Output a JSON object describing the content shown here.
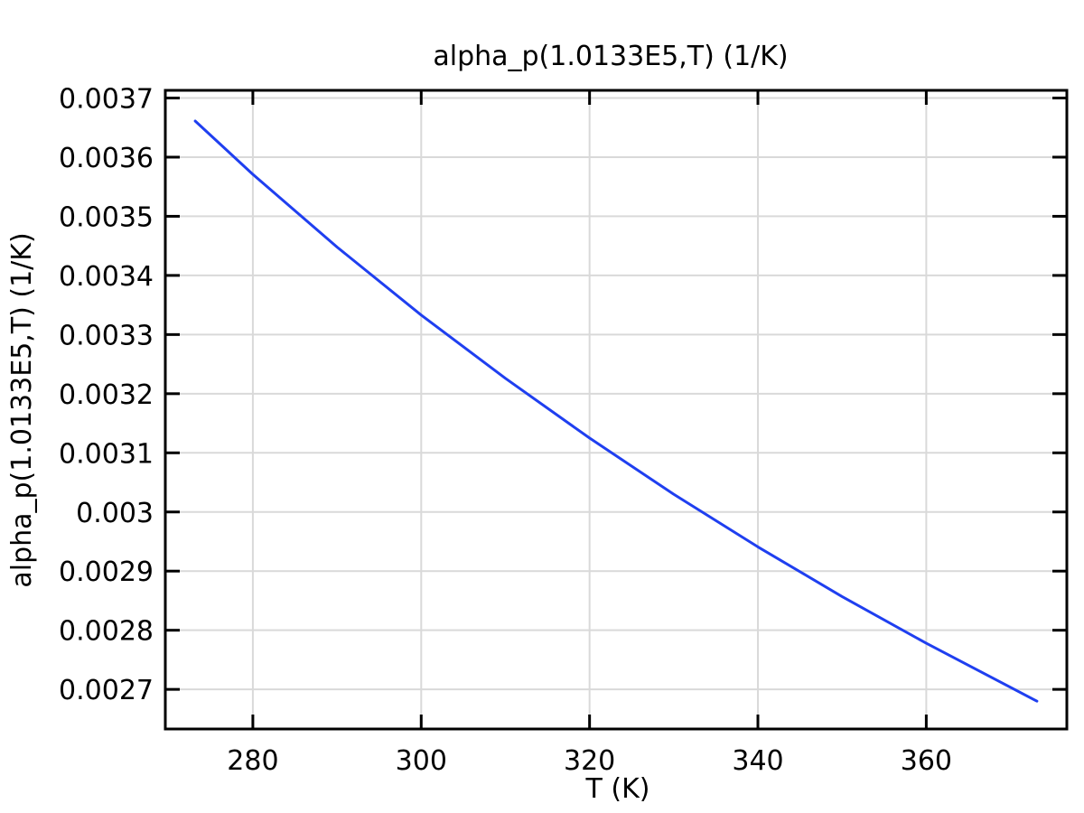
{
  "chart_data": {
    "type": "line",
    "title": "alpha_p(1.0133E5,T) (1/K)",
    "xlabel": "T (K)",
    "ylabel": "alpha_p(1.0133E5,T) (1/K)",
    "xlim": [
      269.6,
      376.7
    ],
    "ylim": [
      0.002633,
      0.003713
    ],
    "x_ticks": [
      280,
      300,
      320,
      340,
      360
    ],
    "x_tick_labels": [
      "280",
      "300",
      "320",
      "340",
      "360"
    ],
    "y_ticks": [
      0.0027,
      0.0028,
      0.0029,
      0.003,
      0.0031,
      0.0032,
      0.0033,
      0.0034,
      0.0035,
      0.0036,
      0.0037
    ],
    "y_tick_labels": [
      "0.0027",
      "0.0028",
      "0.0029",
      "0.003",
      "0.0031",
      "0.0032",
      "0.0033",
      "0.0034",
      "0.0035",
      "0.0036",
      "0.0037"
    ],
    "grid": true,
    "legend": "none",
    "series": [
      {
        "color": "#1f3ff0",
        "x": [
          273.15,
          280,
          290,
          300,
          310,
          320,
          330,
          340,
          350,
          360,
          373.15
        ],
        "y": [
          0.003661,
          0.003571,
          0.003448,
          0.003333,
          0.003226,
          0.003125,
          0.00303,
          0.002941,
          0.002857,
          0.002778,
          0.00268
        ]
      }
    ]
  }
}
